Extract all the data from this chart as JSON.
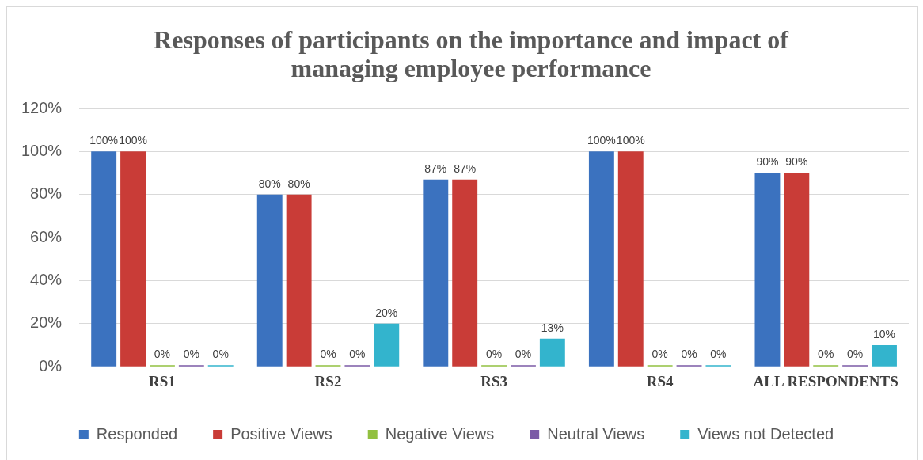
{
  "chart_data": {
    "type": "bar",
    "title": "Responses of participants on the importance and impact of managing employee performance",
    "categories": [
      "RS1",
      "RS2",
      "RS3",
      "RS4",
      "ALL RESPONDENTS"
    ],
    "series": [
      {
        "name": "Responded",
        "color": "#3b72bf",
        "values": [
          100,
          80,
          87,
          100,
          90
        ],
        "value_labels": [
          "100%",
          "80%",
          "87%",
          "100%",
          "90%"
        ]
      },
      {
        "name": "Positive Views",
        "color": "#c93c37",
        "values": [
          100,
          80,
          87,
          100,
          90
        ],
        "value_labels": [
          "100%",
          "80%",
          "87%",
          "100%",
          "90%"
        ]
      },
      {
        "name": "Negative Views",
        "color": "#92c040",
        "values": [
          0,
          0,
          0,
          0,
          0
        ],
        "value_labels": [
          "0%",
          "0%",
          "0%",
          "0%",
          "0%"
        ]
      },
      {
        "name": "Neutral Views",
        "color": "#7b5aa6",
        "values": [
          0,
          0,
          0,
          0,
          0
        ],
        "value_labels": [
          "0%",
          "0%",
          "0%",
          "0%",
          "0%"
        ]
      },
      {
        "name": "Views not Detected",
        "color": "#33b4cd",
        "values": [
          0,
          20,
          13,
          0,
          10
        ],
        "value_labels": [
          "0%",
          "20%",
          "13%",
          "0%",
          "10%"
        ]
      }
    ],
    "ylim": [
      0,
      120
    ],
    "yticks": [
      {
        "value": 0,
        "label": "0%"
      },
      {
        "value": 20,
        "label": "20%"
      },
      {
        "value": 40,
        "label": "40%"
      },
      {
        "value": 60,
        "label": "60%"
      },
      {
        "value": 80,
        "label": "80%"
      },
      {
        "value": 100,
        "label": "100%"
      },
      {
        "value": 120,
        "label": "120%"
      }
    ],
    "grid": "y",
    "legend": "bottom"
  }
}
